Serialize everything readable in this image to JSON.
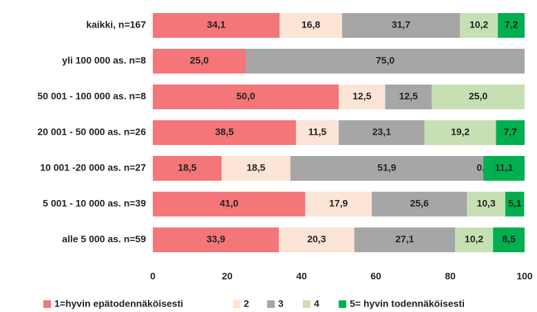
{
  "chart_data": {
    "type": "stacked-bar-horizontal",
    "categories": [
      "kaikki, n=167",
      "yli 100 000 as. n=8",
      "50 001 - 100 000 as. n=8",
      "20 001 - 50 000 as. n=26",
      "10 001 -20 000 as. n=27",
      "5 001 - 10 000 as. n=39",
      "alle 5 000 as. n=59"
    ],
    "series": [
      {
        "name": "1=hyvin epätodennäköisesti",
        "color": "#f47678",
        "values": [
          34.1,
          25.0,
          50.0,
          38.5,
          18.5,
          41.0,
          33.9
        ],
        "value_labels": [
          "34,1",
          "25,0",
          "50,0",
          "38,5",
          "18,5",
          "41,0",
          "33,9"
        ]
      },
      {
        "name": "2",
        "color": "#fce4d6",
        "values": [
          16.8,
          0,
          12.5,
          11.5,
          18.5,
          17.9,
          20.3
        ],
        "value_labels": [
          "16,8",
          null,
          "12,5",
          "11,5",
          "18,5",
          "17,9",
          "20,3"
        ]
      },
      {
        "name": "3",
        "color": "#a6a6a6",
        "values": [
          31.7,
          75.0,
          12.5,
          23.1,
          51.9,
          25.6,
          27.1
        ],
        "value_labels": [
          "31,7",
          "75,0",
          "12,5",
          "23,1",
          "51,9",
          "25,6",
          "27,1"
        ]
      },
      {
        "name": "4",
        "color": "#c6e0b4",
        "values": [
          10.2,
          0,
          25.0,
          19.2,
          0.0,
          10.3,
          10.2
        ],
        "value_labels": [
          "10,2",
          null,
          "25,0",
          "19,2",
          "0,0",
          "10,3",
          "10,2"
        ]
      },
      {
        "name": "5= hyvin todennäköisesti",
        "color": "#00b050",
        "values": [
          7.2,
          0,
          0,
          7.7,
          11.1,
          5.1,
          8.5
        ],
        "value_labels": [
          "7,2",
          null,
          null,
          "7,7",
          "11,1",
          "5,1",
          "8,5"
        ]
      }
    ],
    "xlim": [
      0,
      100
    ],
    "xticks": [
      0,
      20,
      40,
      60,
      80,
      100
    ],
    "grid": false,
    "legend": "bottom"
  }
}
